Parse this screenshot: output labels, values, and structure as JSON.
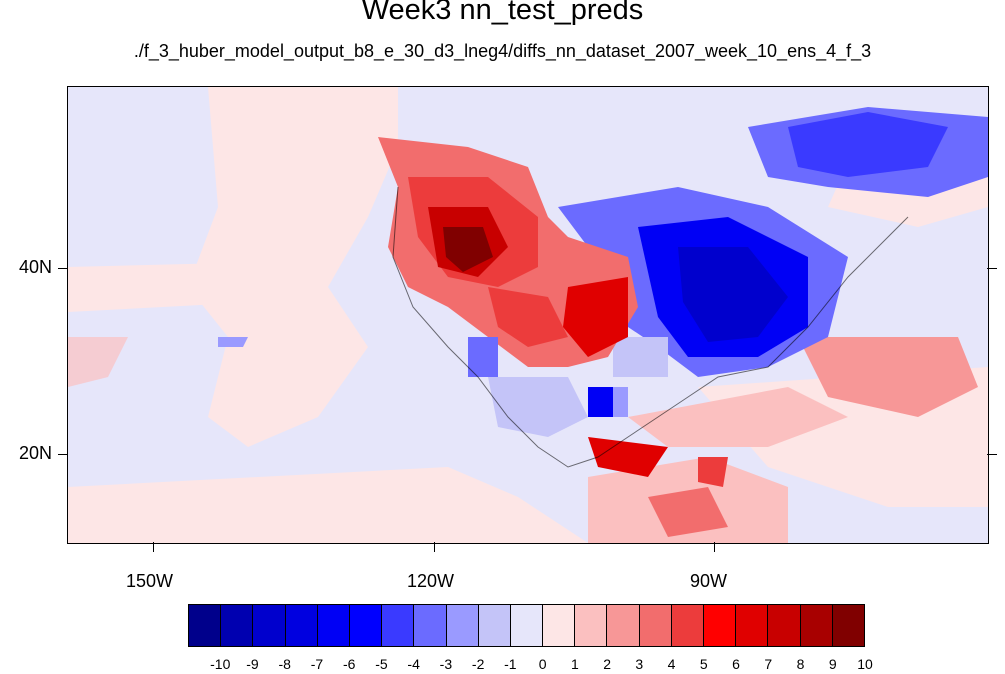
{
  "title": "Week3 nn_test_preds",
  "subtitle": "./f_3_huber_model_output_b8_e_30_d3_lneg4/diffs_nn_dataset_2007_week_10_ens_4_f_3",
  "lat_labels": [
    "40N",
    "20N"
  ],
  "lon_labels": [
    "150W",
    "120W",
    "90W"
  ],
  "colorbar": {
    "labels": [
      "-10",
      "-9",
      "-8",
      "-7",
      "-6",
      "-5",
      "-4",
      "-3",
      "-2",
      "-1",
      "0",
      "1",
      "2",
      "3",
      "4",
      "5",
      "6",
      "7",
      "8",
      "9",
      "10"
    ],
    "colors": [
      "#00008b",
      "#0000b0",
      "#0000cd",
      "#0000e0",
      "#0000f5",
      "#0000ff",
      "#3a3aff",
      "#6b6bff",
      "#9a9aff",
      "#c4c4f8",
      "#e6e6fa",
      "#fde6e6",
      "#fbc0c0",
      "#f79797",
      "#f26d6d",
      "#ec3c3c",
      "#ff0000",
      "#e00000",
      "#c80000",
      "#a80000",
      "#800000"
    ]
  }
}
